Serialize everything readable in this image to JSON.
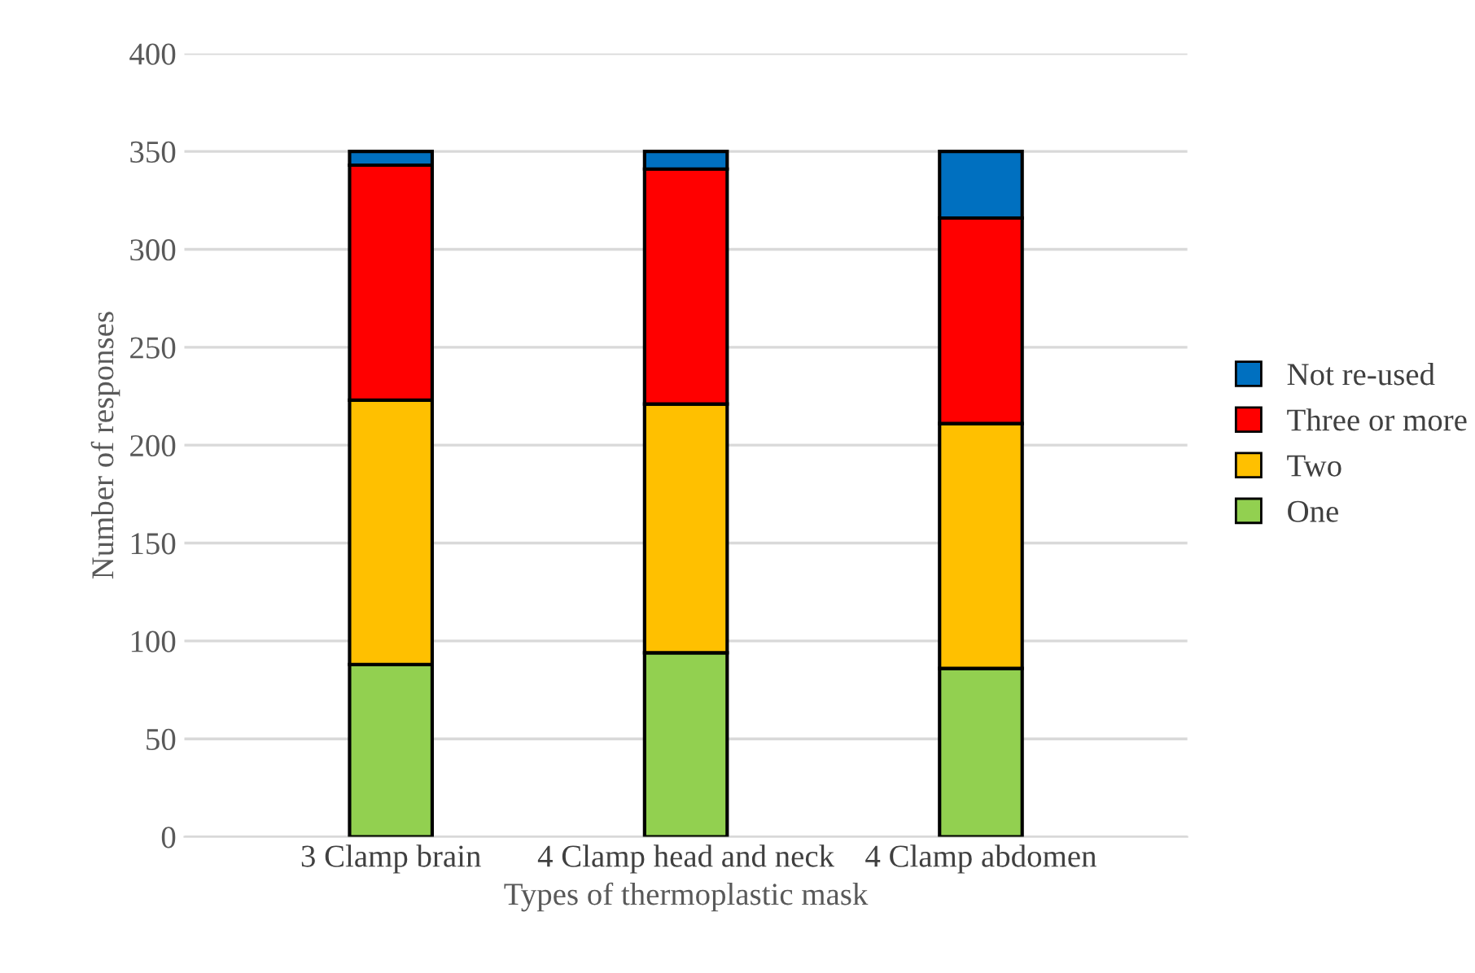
{
  "chart_data": {
    "type": "bar",
    "stacked": true,
    "xlabel": "Types of thermoplastic mask",
    "ylabel": "Number of responses",
    "categories": [
      "3 Clamp brain",
      "4 Clamp head and neck",
      "4 Clamp abdomen"
    ],
    "series": [
      {
        "name": "One",
        "color": "#92d050",
        "values": [
          88,
          94,
          86
        ]
      },
      {
        "name": "Two",
        "color": "#ffc000",
        "values": [
          135,
          127,
          125
        ]
      },
      {
        "name": "Three or more",
        "color": "#ff0000",
        "values": [
          120,
          120,
          105
        ]
      },
      {
        "name": "Not re-used",
        "color": "#0070c0",
        "values": [
          7,
          9,
          34
        ]
      }
    ],
    "ylim": [
      0,
      400
    ],
    "yticks": [
      0,
      50,
      100,
      150,
      200,
      250,
      300,
      350,
      400
    ],
    "grid": "y",
    "legend": "right"
  }
}
